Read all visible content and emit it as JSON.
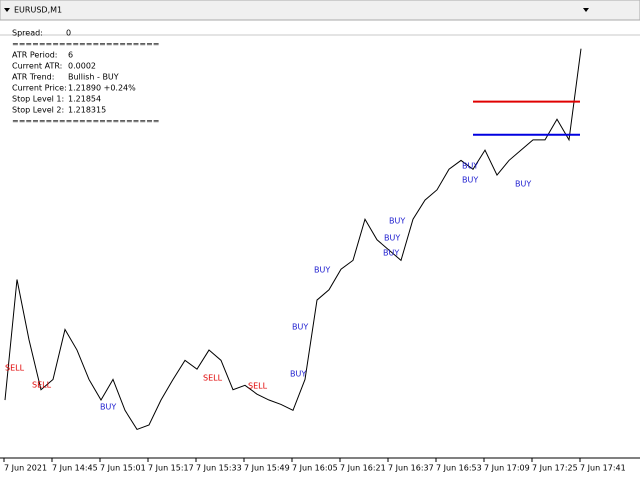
{
  "window": {
    "title": "EURUSD,M1"
  },
  "panel": {
    "lines": [
      {
        "label": "Spread:",
        "value": "0"
      },
      {
        "label": "======================"
      },
      {
        "label": "ATR Period:",
        "value": "6"
      },
      {
        "label": "Current ATR:",
        "value": "0.0002"
      },
      {
        "label": "ATR Trend:",
        "value": "Bullish - BUY"
      },
      {
        "label": "Current Price:",
        "value": "1.21890  +0.24%"
      },
      {
        "label": "Stop Level 1:",
        "value": "1.21854"
      },
      {
        "label": "Stop Level 2:",
        "value": "1.218315"
      },
      {
        "label": "======================"
      }
    ]
  },
  "chart_data": {
    "type": "line",
    "ylim": [
      1.216,
      1.219
    ],
    "series": [
      {
        "name": "EURUSD",
        "color": "#000000",
        "values": [
          1.21651,
          1.21733,
          1.21692,
          1.21658,
          1.21665,
          1.21699,
          1.21685,
          1.21665,
          1.21651,
          1.21665,
          1.21644,
          1.21631,
          1.21634,
          1.21651,
          1.21665,
          1.21678,
          1.21672,
          1.21685,
          1.21678,
          1.21658,
          1.21661,
          1.21655,
          1.21651,
          1.21648,
          1.21644,
          1.21665,
          1.21719,
          1.21726,
          1.2174,
          1.21746,
          1.21774,
          1.2176,
          1.21753,
          1.21746,
          1.21774,
          1.21787,
          1.21794,
          1.21808,
          1.21814,
          1.21808,
          1.21821,
          1.21804,
          1.21814,
          1.21821,
          1.21828,
          1.21828,
          1.21842,
          1.21828,
          1.2189
        ]
      }
    ],
    "stop_colors": [
      "#e00000",
      "#0000e0"
    ],
    "x_labels": [
      "7 Jun 2021",
      "7 Jun 14:45",
      "7 Jun 15:01",
      "7 Jun 15:17",
      "7 Jun 15:33",
      "7 Jun 15:49",
      "7 Jun 16:05",
      "7 Jun 16:21",
      "7 Jun 16:37",
      "7 Jun 16:53",
      "7 Jun 17:09",
      "7 Jun 17:25",
      "7 Jun 17:41"
    ],
    "signals": [
      "SELL",
      "BUY",
      "SELL",
      "SELL",
      "SELL",
      "BUY",
      "BUY",
      "BUY",
      "BUY",
      "BUY",
      "BUY",
      "BUY",
      "BUY",
      "BUY"
    ]
  }
}
